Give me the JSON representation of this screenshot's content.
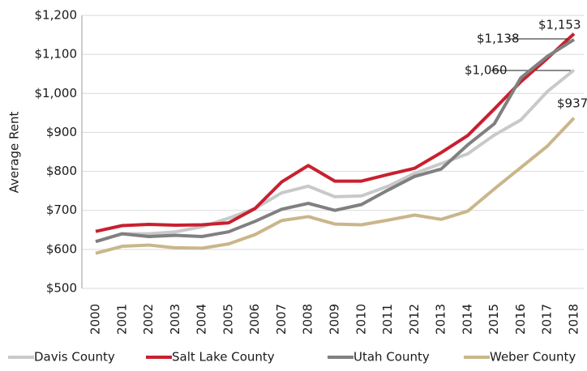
{
  "chart_data": {
    "type": "line",
    "y_label": "Average Rent",
    "categories": [
      "2000",
      "2001",
      "2002",
      "2003",
      "2004",
      "2005",
      "2006",
      "2007",
      "2008",
      "2009",
      "2010",
      "2011",
      "2012",
      "2013",
      "2014",
      "2015",
      "2016",
      "2017",
      "2018"
    ],
    "series": [
      {
        "name": "Davis County",
        "color": "#c9c9c9",
        "values": [
          620,
          640,
          640,
          645,
          658,
          680,
          705,
          745,
          762,
          735,
          737,
          762,
          795,
          820,
          845,
          893,
          932,
          1005,
          1060
        ],
        "value_labels": [
          null,
          null,
          null,
          null,
          null,
          null,
          null,
          null,
          null,
          null,
          null,
          null,
          null,
          null,
          null,
          null,
          null,
          null,
          "$1,060"
        ]
      },
      {
        "name": "Salt Lake County",
        "color": "#c8202f",
        "values": [
          646,
          661,
          664,
          662,
          663,
          668,
          705,
          773,
          815,
          775,
          775,
          792,
          808,
          848,
          892,
          960,
          1030,
          1090,
          1153
        ],
        "value_labels": [
          null,
          null,
          null,
          null,
          null,
          null,
          null,
          null,
          null,
          null,
          null,
          null,
          null,
          null,
          null,
          null,
          null,
          null,
          "$1,153"
        ]
      },
      {
        "name": "Utah County",
        "color": "#808080",
        "values": [
          620,
          640,
          633,
          636,
          633,
          645,
          672,
          703,
          718,
          700,
          715,
          752,
          787,
          806,
          868,
          922,
          1040,
          1095,
          1138
        ],
        "value_labels": [
          null,
          null,
          null,
          null,
          null,
          null,
          null,
          null,
          null,
          null,
          null,
          null,
          null,
          null,
          null,
          null,
          null,
          null,
          "$1,138"
        ]
      },
      {
        "name": "Weber County",
        "color": "#c9b68a",
        "values": [
          590,
          608,
          611,
          604,
          603,
          614,
          638,
          674,
          684,
          665,
          663,
          675,
          688,
          677,
          698,
          755,
          810,
          865,
          937
        ],
        "value_labels": [
          null,
          null,
          null,
          null,
          null,
          null,
          null,
          null,
          null,
          null,
          null,
          null,
          null,
          null,
          null,
          null,
          null,
          null,
          "$937"
        ]
      }
    ],
    "ylim": [
      500,
      1200
    ],
    "yticks": [
      {
        "value": 500,
        "label": "$500"
      },
      {
        "value": 600,
        "label": "$600"
      },
      {
        "value": 700,
        "label": "$700"
      },
      {
        "value": 800,
        "label": "$800"
      },
      {
        "value": 900,
        "label": "$900"
      },
      {
        "value": 1000,
        "label": "$1,000"
      },
      {
        "value": 1100,
        "label": "$1,100"
      },
      {
        "value": 1200,
        "label": "$1,200"
      }
    ],
    "grid": true,
    "legend": "bottom"
  }
}
